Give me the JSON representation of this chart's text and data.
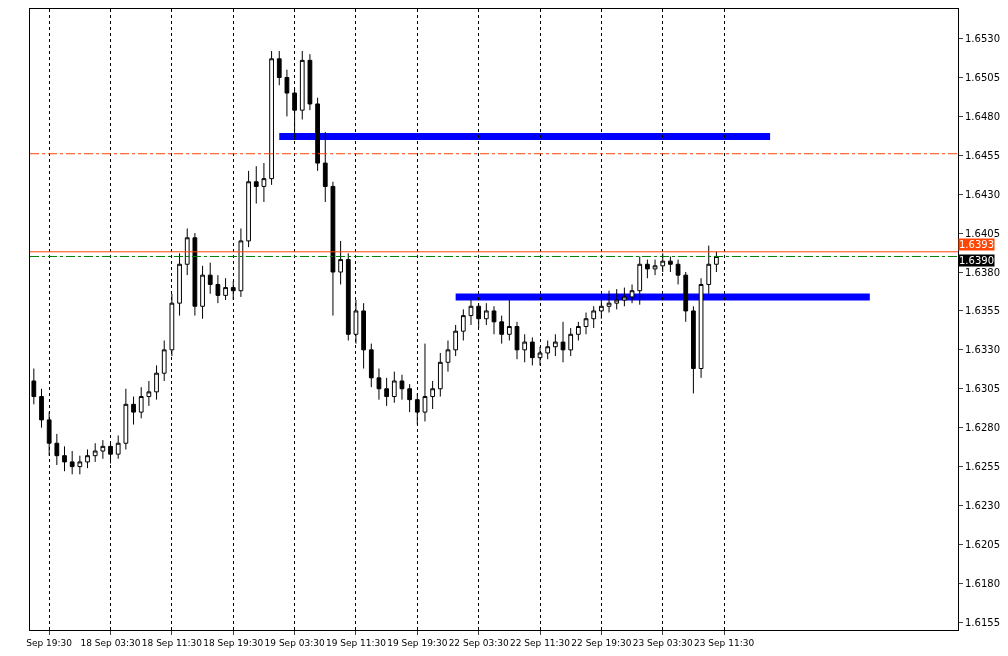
{
  "chart_data": {
    "type": "candlestick",
    "categories": [
      null,
      null,
      "Sep 19:30",
      null,
      null,
      null,
      null,
      null,
      null,
      null,
      "18 Sep 03:30",
      null,
      null,
      null,
      null,
      null,
      null,
      null,
      "18 Sep 11:30",
      null,
      null,
      null,
      null,
      null,
      null,
      null,
      "18 Sep 19:30",
      null,
      null,
      null,
      null,
      null,
      null,
      null,
      "19 Sep 03:30",
      null,
      null,
      null,
      null,
      null,
      null,
      null,
      "19 Sep 11:30",
      null,
      null,
      null,
      null,
      null,
      null,
      null,
      "19 Sep 19:30",
      null,
      null,
      null,
      null,
      null,
      null,
      null,
      "22 Sep 03:30",
      null,
      null,
      null,
      null,
      null,
      null,
      null,
      "22 Sep 11:30",
      null,
      null,
      null,
      null,
      null,
      null,
      null,
      "22 Sep 19:30",
      null,
      null,
      null,
      null,
      null,
      null,
      null,
      "23 Sep 03:30",
      null,
      null,
      null,
      null,
      null,
      null,
      null,
      "23 Sep 11:30",
      null,
      null,
      null,
      null,
      null,
      null,
      null,
      null,
      null,
      null,
      null,
      null,
      null,
      null,
      null,
      null,
      null,
      null,
      null,
      null,
      null,
      null,
      null,
      null,
      null,
      null,
      null,
      null,
      null,
      null
    ],
    "ohlc": [
      [
        1.631,
        1.6318,
        1.6295,
        1.63
      ],
      [
        1.63,
        1.6305,
        1.628,
        1.6285
      ],
      [
        1.6285,
        1.629,
        1.6262,
        1.627
      ],
      [
        1.627,
        1.6276,
        1.6256,
        1.6262
      ],
      [
        1.6262,
        1.6268,
        1.6252,
        1.6258
      ],
      [
        1.6258,
        1.6265,
        1.625,
        1.6255
      ],
      [
        1.6255,
        1.6262,
        1.625,
        1.6258
      ],
      [
        1.6258,
        1.6266,
        1.6254,
        1.6262
      ],
      [
        1.6262,
        1.627,
        1.6258,
        1.6265
      ],
      [
        1.6265,
        1.6272,
        1.626,
        1.6268
      ],
      [
        1.6268,
        1.627,
        1.6257,
        1.6263
      ],
      [
        1.6263,
        1.6275,
        1.626,
        1.627
      ],
      [
        1.627,
        1.6305,
        1.6266,
        1.6295
      ],
      [
        1.6295,
        1.63,
        1.6282,
        1.629
      ],
      [
        1.629,
        1.6306,
        1.6286,
        1.63
      ],
      [
        1.63,
        1.631,
        1.6294,
        1.6303
      ],
      [
        1.6303,
        1.632,
        1.6298,
        1.6315
      ],
      [
        1.6315,
        1.6336,
        1.631,
        1.633
      ],
      [
        1.633,
        1.6366,
        1.6326,
        1.636
      ],
      [
        1.636,
        1.6392,
        1.6352,
        1.6385
      ],
      [
        1.6385,
        1.6408,
        1.6378,
        1.6402
      ],
      [
        1.6402,
        1.6405,
        1.6352,
        1.6358
      ],
      [
        1.6358,
        1.6384,
        1.635,
        1.6378
      ],
      [
        1.6378,
        1.6386,
        1.6366,
        1.6372
      ],
      [
        1.6372,
        1.6378,
        1.636,
        1.6365
      ],
      [
        1.6365,
        1.6376,
        1.6362,
        1.637
      ],
      [
        1.637,
        1.6374,
        1.6362,
        1.6368
      ],
      [
        1.6368,
        1.6408,
        1.6364,
        1.64
      ],
      [
        1.64,
        1.6445,
        1.6396,
        1.6438
      ],
      [
        1.6438,
        1.6448,
        1.6424,
        1.6435
      ],
      [
        1.6435,
        1.645,
        1.6425,
        1.644
      ],
      [
        1.644,
        1.6522,
        1.6436,
        1.6517
      ],
      [
        1.6517,
        1.6522,
        1.65,
        1.6505
      ],
      [
        1.6505,
        1.651,
        1.648,
        1.6495
      ],
      [
        1.6495,
        1.6498,
        1.6465,
        1.6484
      ],
      [
        1.6484,
        1.6522,
        1.6478,
        1.6516
      ],
      [
        1.6516,
        1.652,
        1.6484,
        1.6488
      ],
      [
        1.6488,
        1.6492,
        1.6445,
        1.645
      ],
      [
        1.645,
        1.647,
        1.6425,
        1.6435
      ],
      [
        1.6435,
        1.6438,
        1.6352,
        1.638
      ],
      [
        1.638,
        1.64,
        1.6372,
        1.6388
      ],
      [
        1.6388,
        1.6392,
        1.6336,
        1.634
      ],
      [
        1.634,
        1.6362,
        1.6334,
        1.6355
      ],
      [
        1.6355,
        1.636,
        1.6318,
        1.633
      ],
      [
        1.633,
        1.6334,
        1.6306,
        1.6312
      ],
      [
        1.6312,
        1.6318,
        1.6298,
        1.6305
      ],
      [
        1.6305,
        1.6312,
        1.6294,
        1.63
      ],
      [
        1.63,
        1.6316,
        1.6296,
        1.631
      ],
      [
        1.631,
        1.6314,
        1.6298,
        1.6305
      ],
      [
        1.6305,
        1.6308,
        1.629,
        1.6298
      ],
      [
        1.6298,
        1.6302,
        1.6282,
        1.629
      ],
      [
        1.629,
        1.6334,
        1.6284,
        1.63
      ],
      [
        1.63,
        1.631,
        1.6292,
        1.6305
      ],
      [
        1.6305,
        1.6328,
        1.63,
        1.6322
      ],
      [
        1.6322,
        1.6336,
        1.6316,
        1.633
      ],
      [
        1.633,
        1.6346,
        1.6326,
        1.6342
      ],
      [
        1.6342,
        1.6356,
        1.6336,
        1.6352
      ],
      [
        1.6352,
        1.6362,
        1.6346,
        1.6358
      ],
      [
        1.6358,
        1.636,
        1.6344,
        1.635
      ],
      [
        1.635,
        1.636,
        1.6346,
        1.6355
      ],
      [
        1.6355,
        1.6358,
        1.634,
        1.6348
      ],
      [
        1.6348,
        1.6352,
        1.6334,
        1.634
      ],
      [
        1.634,
        1.6362,
        1.6336,
        1.6345
      ],
      [
        1.6345,
        1.6348,
        1.6324,
        1.633
      ],
      [
        1.633,
        1.634,
        1.6322,
        1.6335
      ],
      [
        1.6335,
        1.6338,
        1.632,
        1.6325
      ],
      [
        1.6325,
        1.6332,
        1.632,
        1.6328
      ],
      [
        1.6328,
        1.6336,
        1.6324,
        1.6332
      ],
      [
        1.6332,
        1.634,
        1.6326,
        1.6335
      ],
      [
        1.6335,
        1.6348,
        1.6322,
        1.633
      ],
      [
        1.633,
        1.6344,
        1.6326,
        1.634
      ],
      [
        1.634,
        1.6348,
        1.6336,
        1.6345
      ],
      [
        1.6345,
        1.6354,
        1.634,
        1.635
      ],
      [
        1.635,
        1.6358,
        1.6344,
        1.6355
      ],
      [
        1.6355,
        1.6362,
        1.635,
        1.6358
      ],
      [
        1.6358,
        1.6368,
        1.6354,
        1.636
      ],
      [
        1.636,
        1.6369,
        1.6356,
        1.6362
      ],
      [
        1.6362,
        1.637,
        1.6358,
        1.6364
      ],
      [
        1.6364,
        1.6372,
        1.636,
        1.6368
      ],
      [
        1.6368,
        1.639,
        1.6359,
        1.6385
      ],
      [
        1.6385,
        1.6388,
        1.6376,
        1.6382
      ],
      [
        1.6382,
        1.6388,
        1.6378,
        1.6384
      ],
      [
        1.6384,
        1.6392,
        1.638,
        1.6387
      ],
      [
        1.6387,
        1.639,
        1.638,
        1.6385
      ],
      [
        1.6385,
        1.6388,
        1.6372,
        1.6378
      ],
      [
        1.6378,
        1.638,
        1.6348,
        1.6355
      ],
      [
        1.6355,
        1.6358,
        1.6302,
        1.6318
      ],
      [
        1.6318,
        1.6376,
        1.6312,
        1.6372
      ],
      [
        1.6372,
        1.6397,
        1.6366,
        1.6385
      ],
      [
        1.6385,
        1.6393,
        1.638,
        1.639
      ],
      null,
      null,
      null,
      null,
      null,
      null,
      null,
      null,
      null,
      null,
      null,
      null,
      null,
      null,
      null,
      null,
      null,
      null,
      null,
      null,
      null,
      null,
      null,
      null,
      null,
      null,
      null,
      null,
      null,
      null,
      null
    ],
    "series": [
      {
        "type": "line",
        "color": "#0000ff",
        "values": [
          null,
          null,
          null,
          null,
          null,
          null,
          null,
          null,
          null,
          null,
          null,
          null,
          null,
          null,
          null,
          null,
          null,
          null,
          null,
          null,
          null,
          null,
          null,
          null,
          null,
          null,
          null,
          null,
          null,
          null,
          null,
          null,
          1.6467,
          1.6467,
          1.6467,
          1.6467,
          1.6467,
          1.6467,
          1.6467,
          1.6467,
          1.6467,
          1.6467,
          1.6467,
          1.6467,
          1.6467,
          1.6467,
          1.6467,
          1.6467,
          1.6467,
          1.6467,
          1.6467,
          1.6467,
          1.6467,
          1.6467,
          1.6467,
          1.6467,
          1.6467,
          1.6467,
          1.6467,
          1.6467,
          1.6467,
          1.6467,
          1.6467,
          1.6467,
          1.6467,
          1.6467,
          1.6467,
          1.6467,
          1.6467,
          1.6467,
          1.6467,
          1.6467,
          1.6467,
          1.6467,
          1.6467,
          1.6467,
          1.6467,
          1.6467,
          1.6467,
          1.6467,
          1.6467,
          1.6467,
          1.6467,
          1.6467,
          1.6467,
          1.6467,
          1.6467,
          1.6467,
          1.6467,
          1.6467,
          1.6467,
          1.6467,
          1.6467,
          1.6467,
          1.6467,
          1.6467,
          1.6467,
          null,
          null,
          null,
          null,
          null,
          null,
          null,
          null,
          null,
          null,
          null,
          null,
          null,
          null,
          null,
          null,
          null,
          null,
          null,
          null,
          null,
          null,
          null,
          null
        ]
      },
      {
        "type": "line",
        "color": "#0000ff",
        "values": [
          null,
          null,
          null,
          null,
          null,
          null,
          null,
          null,
          null,
          null,
          null,
          null,
          null,
          null,
          null,
          null,
          null,
          null,
          null,
          null,
          null,
          null,
          null,
          null,
          null,
          null,
          null,
          null,
          null,
          null,
          null,
          null,
          null,
          null,
          null,
          null,
          null,
          null,
          null,
          null,
          null,
          null,
          null,
          null,
          null,
          null,
          null,
          null,
          null,
          null,
          null,
          null,
          null,
          null,
          null,
          1.6364,
          1.6364,
          1.6364,
          1.6364,
          1.6364,
          1.6364,
          1.6364,
          1.6364,
          1.6364,
          1.6364,
          1.6364,
          1.6364,
          1.6364,
          1.6364,
          1.6364,
          1.6364,
          1.6364,
          1.6364,
          1.6364,
          1.6364,
          1.6364,
          1.6364,
          1.6364,
          1.6364,
          1.6364,
          1.6364,
          1.6364,
          1.6364,
          1.6364,
          1.6364,
          1.6364,
          1.6364,
          1.6364,
          1.6364,
          1.6364,
          1.6364,
          1.6364,
          1.6364,
          1.6364,
          1.6364,
          1.6364,
          1.6364,
          1.6364,
          1.6364,
          1.6364,
          1.6364,
          1.6364,
          1.6364,
          1.6364,
          1.6364,
          1.6364,
          1.6364,
          1.6364,
          1.6364,
          1.6364,
          null,
          null,
          null,
          null,
          null,
          null,
          null,
          null,
          null,
          null,
          null
        ]
      }
    ],
    "ylim": [
      1.615,
      1.6549
    ],
    "yticks": [
      {
        "value": 1.6155,
        "label": "1.6155"
      },
      {
        "value": 1.618,
        "label": "1.6180"
      },
      {
        "value": 1.6205,
        "label": "1.6205"
      },
      {
        "value": 1.623,
        "label": "1.6230"
      },
      {
        "value": 1.6255,
        "label": "1.6255"
      },
      {
        "value": 1.628,
        "label": "1.6280"
      },
      {
        "value": 1.6305,
        "label": "1.6305"
      },
      {
        "value": 1.633,
        "label": "1.6330"
      },
      {
        "value": 1.6355,
        "label": "1.6355"
      },
      {
        "value": 1.638,
        "label": "1.6380"
      },
      {
        "value": 1.6405,
        "label": "1.6405"
      },
      {
        "value": 1.643,
        "label": "1.6430"
      },
      {
        "value": 1.6455,
        "label": "1.6455"
      },
      {
        "value": 1.648,
        "label": "1.6480"
      },
      {
        "value": 1.6505,
        "label": "1.6505"
      },
      {
        "value": 1.653,
        "label": "1.6530"
      }
    ],
    "ref_lines": [
      {
        "axis": "y",
        "value": 1.6456,
        "color": "#ff4500",
        "line_style": "dashdot"
      },
      {
        "axis": "y",
        "value": 1.6393,
        "label": "1.6393",
        "color": "#ff4500",
        "line_style": "solid"
      },
      {
        "axis": "y",
        "value": 1.639,
        "label": "1.6390",
        "color": "#008000",
        "line_style": "dashdot"
      }
    ],
    "grid": "x"
  }
}
